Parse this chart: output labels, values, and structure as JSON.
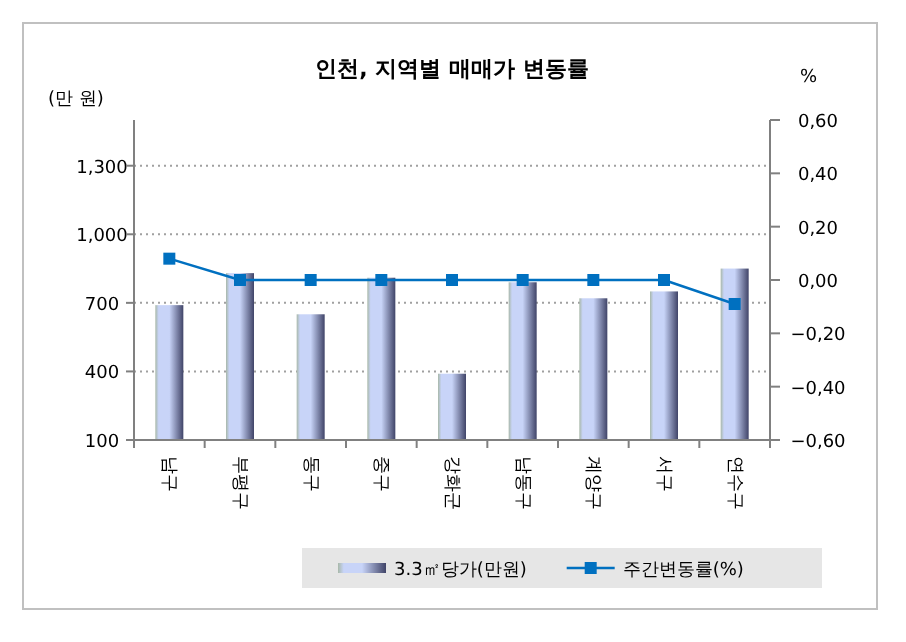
{
  "chart_data": {
    "type": "bar",
    "title": "인천, 지역별 매매가 변동률",
    "ylabel": "(만 원)",
    "y2label": "%",
    "categories": [
      "남구",
      "부평구",
      "동구",
      "중구",
      "강화군",
      "남동구",
      "계양구",
      "서구",
      "연수구"
    ],
    "series": [
      {
        "name": "3.3㎡당가(만원)",
        "color": "#c8d4f8",
        "values": [
          690,
          830,
          650,
          810,
          390,
          790,
          720,
          750,
          850
        ]
      },
      {
        "name": "주간변동률(%)",
        "type": "line",
        "axis": "y2",
        "color": "#0070c0",
        "marker": "square",
        "values": [
          0.08,
          0,
          0,
          0,
          0,
          0,
          0,
          0,
          -0.09
        ]
      }
    ],
    "ylim": [
      100,
      1500
    ],
    "yticks": [
      100,
      400,
      700,
      {
        "value": 1000,
        "label": "1,000"
      },
      {
        "value": 1300,
        "label": "1,300"
      }
    ],
    "y2lim": [
      -0.6,
      0.6
    ],
    "y2ticks": [
      {
        "value": -0.6,
        "label": "−0,60"
      },
      {
        "value": -0.4,
        "label": "−0,40"
      },
      {
        "value": -0.2,
        "label": "−0,20"
      },
      {
        "value": 0,
        "label": "0,00"
      },
      {
        "value": 0.2,
        "label": "0,20"
      },
      {
        "value": 0.4,
        "label": "0,40"
      },
      {
        "value": 0.6,
        "label": "0,60"
      }
    ],
    "grid": "y",
    "legend": "bottom"
  }
}
